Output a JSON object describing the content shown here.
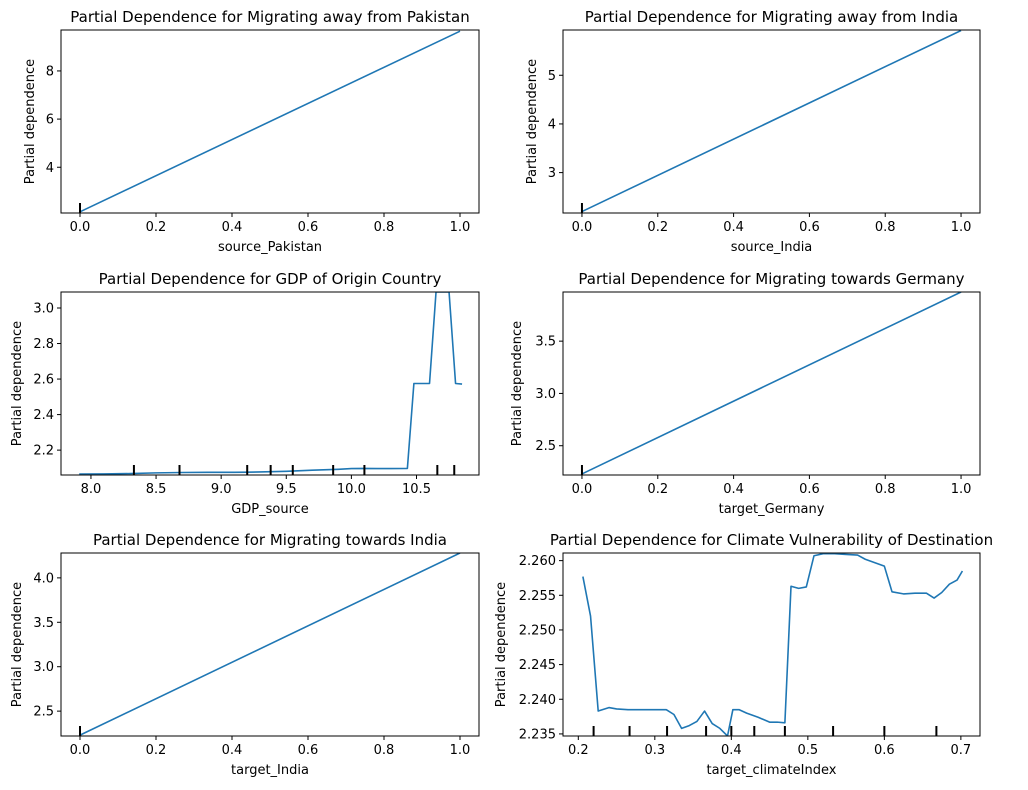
{
  "figure": {
    "background": "#ffffff",
    "line_color": "#1f77b4",
    "rug_color": "#000000"
  },
  "chart_data": [
    {
      "type": "line",
      "title": "Partial Dependence for Migrating away from Pakistan",
      "xlabel": "source_Pakistan",
      "ylabel": "Partial dependence",
      "xlim": [
        -0.05,
        1.05
      ],
      "ylim": [
        2.1,
        9.7
      ],
      "xticks": [
        0.0,
        0.2,
        0.4,
        0.6,
        0.8,
        1.0
      ],
      "xtick_labels": [
        "0.0",
        "0.2",
        "0.4",
        "0.6",
        "0.8",
        "1.0"
      ],
      "yticks": [
        4,
        6,
        8
      ],
      "ytick_labels": [
        "4",
        "6",
        "8"
      ],
      "series": [
        {
          "x": [
            0.0,
            1.0
          ],
          "y": [
            2.15,
            9.65
          ]
        }
      ],
      "rug": [
        0.0
      ]
    },
    {
      "type": "line",
      "title": "Partial Dependence for Migrating away from India",
      "xlabel": "source_India",
      "ylabel": "Partial dependence",
      "xlim": [
        -0.05,
        1.05
      ],
      "ylim": [
        2.17,
        5.93
      ],
      "xticks": [
        0.0,
        0.2,
        0.4,
        0.6,
        0.8,
        1.0
      ],
      "xtick_labels": [
        "0.0",
        "0.2",
        "0.4",
        "0.6",
        "0.8",
        "1.0"
      ],
      "yticks": [
        3,
        4,
        5
      ],
      "ytick_labels": [
        "3",
        "4",
        "5"
      ],
      "series": [
        {
          "x": [
            0.0,
            1.0
          ],
          "y": [
            2.2,
            5.92
          ]
        }
      ],
      "rug": [
        0.0
      ]
    },
    {
      "type": "line",
      "title": "Partial Dependence for GDP of Origin Country",
      "xlabel": "GDP_source",
      "ylabel": "Partial dependence",
      "xlim": [
        7.77,
        10.98
      ],
      "ylim": [
        2.06,
        3.09
      ],
      "xticks": [
        8.0,
        8.5,
        9.0,
        9.5,
        10.0,
        10.5
      ],
      "xtick_labels": [
        "8.0",
        "8.5",
        "9.0",
        "9.5",
        "10.0",
        "10.5"
      ],
      "yticks": [
        2.2,
        2.4,
        2.6,
        2.8,
        3.0
      ],
      "ytick_labels": [
        "2.2",
        "2.4",
        "2.6",
        "2.8",
        "3.0"
      ],
      "series": [
        {
          "x": [
            7.91,
            8.1,
            8.3,
            8.5,
            8.7,
            8.9,
            9.1,
            9.2,
            9.3,
            9.5,
            9.7,
            9.9,
            10.0,
            10.1,
            10.2,
            10.3,
            10.43,
            10.48,
            10.6,
            10.65,
            10.75,
            10.8,
            10.85
          ],
          "y": [
            2.065,
            2.066,
            2.068,
            2.072,
            2.074,
            2.075,
            2.075,
            2.076,
            2.077,
            2.081,
            2.087,
            2.092,
            2.096,
            2.097,
            2.096,
            2.096,
            2.097,
            2.575,
            2.575,
            3.09,
            3.09,
            2.575,
            2.572
          ]
        }
      ],
      "rug": [
        8.33,
        8.68,
        9.2,
        9.38,
        9.55,
        9.86,
        10.1,
        10.66,
        10.79
      ]
    },
    {
      "type": "line",
      "title": "Partial Dependence for Migrating towards Germany",
      "xlabel": "target_Germany",
      "ylabel": "Partial dependence",
      "xlim": [
        -0.05,
        1.05
      ],
      "ylim": [
        2.22,
        3.97
      ],
      "xticks": [
        0.0,
        0.2,
        0.4,
        0.6,
        0.8,
        1.0
      ],
      "xtick_labels": [
        "0.0",
        "0.2",
        "0.4",
        "0.6",
        "0.8",
        "1.0"
      ],
      "yticks": [
        2.5,
        3.0,
        3.5
      ],
      "ytick_labels": [
        "2.5",
        "3.0",
        "3.5"
      ],
      "series": [
        {
          "x": [
            0.0,
            1.0
          ],
          "y": [
            2.23,
            3.97
          ]
        }
      ],
      "rug": [
        0.0
      ]
    },
    {
      "type": "line",
      "title": "Partial Dependence for Migrating towards India",
      "xlabel": "target_India",
      "ylabel": "Partial dependence",
      "xlim": [
        -0.05,
        1.05
      ],
      "ylim": [
        2.22,
        4.28
      ],
      "xticks": [
        0.0,
        0.2,
        0.4,
        0.6,
        0.8,
        1.0
      ],
      "xtick_labels": [
        "0.0",
        "0.2",
        "0.4",
        "0.6",
        "0.8",
        "1.0"
      ],
      "yticks": [
        2.5,
        3.0,
        3.5,
        4.0
      ],
      "ytick_labels": [
        "2.5",
        "3.0",
        "3.5",
        "4.0"
      ],
      "series": [
        {
          "x": [
            0.0,
            1.0
          ],
          "y": [
            2.23,
            4.28
          ]
        }
      ],
      "rug": [
        0.0
      ]
    },
    {
      "type": "line",
      "title": "Partial Dependence for Climate Vulnerability of Destination",
      "xlabel": "target_climateIndex",
      "ylabel": "Partial dependence",
      "xlim": [
        0.18,
        0.725
      ],
      "ylim": [
        2.2347,
        2.2611
      ],
      "xticks": [
        0.2,
        0.3,
        0.4,
        0.5,
        0.6,
        0.7
      ],
      "xtick_labels": [
        "0.2",
        "0.3",
        "0.4",
        "0.5",
        "0.6",
        "0.7"
      ],
      "yticks": [
        2.235,
        2.24,
        2.245,
        2.25,
        2.255,
        2.26
      ],
      "ytick_labels": [
        "2.235",
        "2.240",
        "2.245",
        "2.250",
        "2.255",
        "2.260"
      ],
      "series": [
        {
          "x": [
            0.206,
            0.216,
            0.226,
            0.24,
            0.25,
            0.265,
            0.28,
            0.3,
            0.315,
            0.325,
            0.335,
            0.345,
            0.355,
            0.365,
            0.375,
            0.385,
            0.395,
            0.402,
            0.41,
            0.42,
            0.435,
            0.45,
            0.46,
            0.47,
            0.478,
            0.488,
            0.498,
            0.508,
            0.52,
            0.535,
            0.55,
            0.565,
            0.575,
            0.6,
            0.61,
            0.625,
            0.64,
            0.655,
            0.665,
            0.675,
            0.685,
            0.695,
            0.702
          ],
          "y": [
            2.2577,
            2.252,
            2.2383,
            2.2388,
            2.2386,
            2.2385,
            2.2385,
            2.2385,
            2.2385,
            2.2378,
            2.2358,
            2.2362,
            2.2368,
            2.2383,
            2.2365,
            2.2358,
            2.2347,
            2.2385,
            2.2385,
            2.238,
            2.2374,
            2.2367,
            2.2367,
            2.2366,
            2.2563,
            2.256,
            2.2562,
            2.2607,
            2.261,
            2.261,
            2.2609,
            2.2608,
            2.2602,
            2.2592,
            2.2555,
            2.2552,
            2.2553,
            2.2553,
            2.2546,
            2.2554,
            2.2566,
            2.2572,
            2.2585
          ]
        }
      ],
      "rug": [
        0.22,
        0.267,
        0.316,
        0.367,
        0.4,
        0.43,
        0.47,
        0.533,
        0.6,
        0.668
      ]
    }
  ]
}
